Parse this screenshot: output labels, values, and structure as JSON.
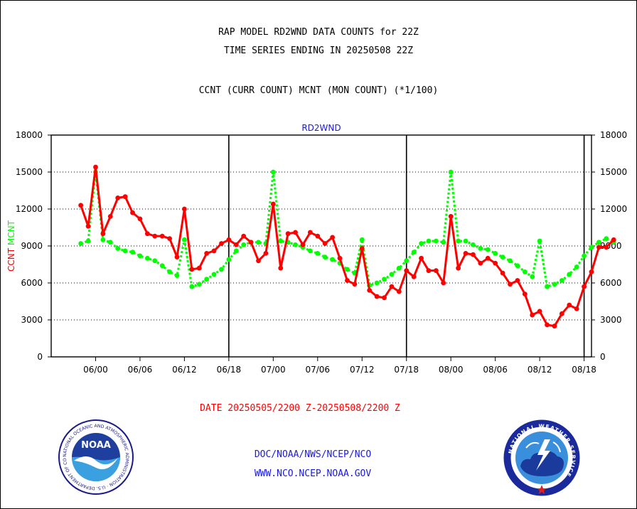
{
  "header": {
    "title_line1": "RAP MODEL RD2WND DATA COUNTS for 22Z",
    "title_line2": "TIME SERIES ENDING IN 20250508 22Z",
    "subtitle": "CCNT (CURR COUNT) MCNT (MON COUNT) (*1/100)"
  },
  "chart_data": {
    "type": "line",
    "title": "RD2WND",
    "xlabel": "DATE 20250505/2200 Z-20250508/2200 Z",
    "ylabel_left": [
      "CCNT",
      "MCNT"
    ],
    "ylim": [
      0,
      18000
    ],
    "yticks": [
      0,
      3000,
      6000,
      9000,
      12000,
      15000,
      18000
    ],
    "xlim": [
      -4,
      69
    ],
    "xticks": [
      {
        "x": 2,
        "label": "06/00"
      },
      {
        "x": 8,
        "label": "06/06"
      },
      {
        "x": 14,
        "label": "06/12"
      },
      {
        "x": 20,
        "label": "06/18"
      },
      {
        "x": 26,
        "label": "07/00"
      },
      {
        "x": 32,
        "label": "07/06"
      },
      {
        "x": 38,
        "label": "07/12"
      },
      {
        "x": 44,
        "label": "07/18"
      },
      {
        "x": 50,
        "label": "08/00"
      },
      {
        "x": 56,
        "label": "08/06"
      },
      {
        "x": 62,
        "label": "08/12"
      },
      {
        "x": 68,
        "label": "08/18"
      }
    ],
    "day_boundaries": [
      20,
      44,
      68
    ],
    "grid": true,
    "series": [
      {
        "name": "CCNT",
        "color": "#ff0000",
        "style": "solid",
        "values": [
          12300,
          10600,
          15400,
          10000,
          11400,
          12900,
          13000,
          11700,
          11200,
          10000,
          9800,
          9800,
          9600,
          8100,
          12000,
          7100,
          7200,
          8400,
          8600,
          9200,
          9500,
          9100,
          9800,
          9300,
          7800,
          8400,
          12400,
          7200,
          10000,
          10100,
          9100,
          10100,
          9800,
          9200,
          9700,
          8000,
          6200,
          5900,
          8800,
          5400,
          4900,
          4800,
          5700,
          5300,
          7000,
          6500,
          8000,
          7000,
          7000,
          6000,
          11400,
          7200,
          8400,
          8300,
          7600,
          8000,
          7600,
          6800,
          5900,
          6200,
          5100,
          3400,
          3700,
          2600,
          2500,
          3500,
          4200,
          3900,
          5700,
          6900,
          8900,
          8900,
          9500
        ]
      },
      {
        "name": "MCNT",
        "color": "#00ff00",
        "style": "dotted",
        "values": [
          9200,
          9400,
          15000,
          9500,
          9300,
          8800,
          8600,
          8500,
          8200,
          8000,
          7800,
          7400,
          6900,
          6600,
          9500,
          5700,
          5900,
          6300,
          6700,
          7100,
          7900,
          8600,
          9100,
          9300,
          9300,
          9200,
          15000,
          9400,
          9300,
          9100,
          8900,
          8600,
          8400,
          8100,
          7900,
          7600,
          7100,
          6800,
          9500,
          5800,
          6000,
          6300,
          6700,
          7200,
          7800,
          8500,
          9200,
          9400,
          9400,
          9300,
          15000,
          9400,
          9400,
          9100,
          8800,
          8700,
          8400,
          8100,
          7800,
          7400,
          6900,
          6500,
          9400,
          5700,
          5900,
          6200,
          6700,
          7300,
          8200,
          8900,
          9300,
          9600,
          9300
        ]
      }
    ]
  },
  "footer": {
    "link1": "DOC/NOAA/NWS/NCEP/NCO",
    "link2": "WWW.NCO.NCEP.NOAA.GOV"
  },
  "logos": {
    "noaa_text": "NOAA",
    "noaa_ring": "NATIONAL OCEANIC AND ATMOSPHERIC ADMINISTRATION · U.S. DEPARTMENT OF COMMERCE ·",
    "nws_ring": "NATIONAL WEATHER SERVICE"
  },
  "colors": {
    "ccnt": "#ff0000",
    "mcnt": "#00ff00",
    "title_blue": "#1a1adc",
    "date_red": "#ff0000"
  }
}
